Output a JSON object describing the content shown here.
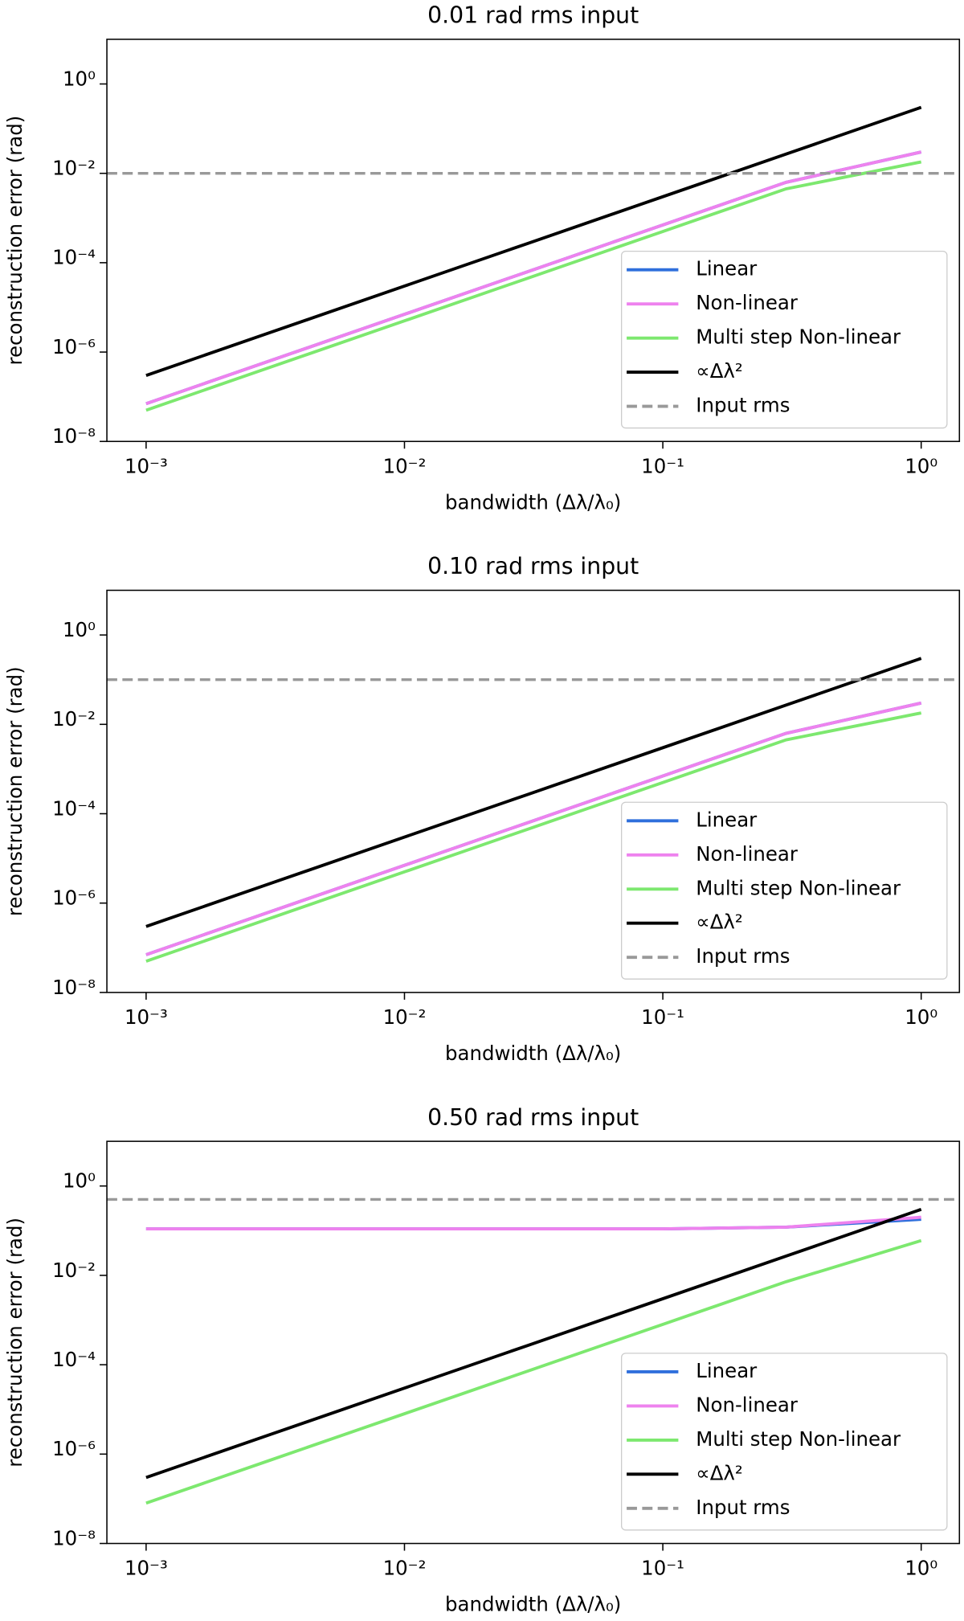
{
  "chart_data": [
    {
      "type": "line",
      "title": "0.01 rad rms input",
      "xlabel": "bandwidth (Δλ/λ₀)",
      "ylabel": "reconstruction error (rad)",
      "log_x": true,
      "log_y": true,
      "legend": "lower right",
      "x": [
        0.001,
        0.003,
        0.01,
        0.03,
        0.1,
        0.3,
        1
      ],
      "series": [
        {
          "name": "Linear",
          "color": "#2f6fdc",
          "values": [
            7e-08,
            6.3e-07,
            7e-06,
            6.3e-05,
            0.0007,
            0.0063,
            0.03
          ]
        },
        {
          "name": "Non-linear",
          "color": "#ee82ee",
          "values": [
            7e-08,
            6.3e-07,
            7e-06,
            6.3e-05,
            0.0007,
            0.0063,
            0.03
          ]
        },
        {
          "name": "Multi step Non-linear",
          "color": "#7de86f",
          "values": [
            5e-08,
            4.5e-07,
            5e-06,
            4.5e-05,
            0.0005,
            0.0045,
            0.018
          ]
        },
        {
          "name": "∝Δλ²",
          "color": "#000000",
          "values": [
            3e-07,
            2.7e-06,
            3e-05,
            0.00027,
            0.003,
            0.027,
            0.3
          ]
        }
      ],
      "hline": {
        "name": "Input rms",
        "color": "#999999",
        "value": 0.01
      },
      "xlim": [
        0.000705,
        1.406
      ],
      "ylim": [
        1e-08,
        10
      ],
      "xticks": [
        {
          "value": 0.001,
          "label": "10⁻³"
        },
        {
          "value": 0.01,
          "label": "10⁻²"
        },
        {
          "value": 0.1,
          "label": "10⁻¹"
        },
        {
          "value": 1,
          "label": "10⁰"
        }
      ],
      "yticks": [
        {
          "value": 1e-08,
          "label": "10⁻⁸"
        },
        {
          "value": 1e-06,
          "label": "10⁻⁶"
        },
        {
          "value": 0.0001,
          "label": "10⁻⁴"
        },
        {
          "value": 0.01,
          "label": "10⁻²"
        },
        {
          "value": 1,
          "label": "10⁰"
        }
      ]
    },
    {
      "type": "line",
      "title": "0.10 rad rms input",
      "xlabel": "bandwidth (Δλ/λ₀)",
      "ylabel": "reconstruction error (rad)",
      "log_x": true,
      "log_y": true,
      "legend": "lower right",
      "x": [
        0.001,
        0.003,
        0.01,
        0.03,
        0.1,
        0.3,
        1
      ],
      "series": [
        {
          "name": "Linear",
          "color": "#2f6fdc",
          "values": [
            7e-08,
            6.3e-07,
            7e-06,
            6.3e-05,
            0.0007,
            0.0063,
            0.03
          ]
        },
        {
          "name": "Non-linear",
          "color": "#ee82ee",
          "values": [
            7e-08,
            6.3e-07,
            7e-06,
            6.3e-05,
            0.0007,
            0.0063,
            0.03
          ]
        },
        {
          "name": "Multi step Non-linear",
          "color": "#7de86f",
          "values": [
            5e-08,
            4.5e-07,
            5e-06,
            4.5e-05,
            0.0005,
            0.0045,
            0.018
          ]
        },
        {
          "name": "∝Δλ²",
          "color": "#000000",
          "values": [
            3e-07,
            2.7e-06,
            3e-05,
            0.00027,
            0.003,
            0.027,
            0.3
          ]
        }
      ],
      "hline": {
        "name": "Input rms",
        "color": "#999999",
        "value": 0.1
      },
      "xlim": [
        0.000705,
        1.406
      ],
      "ylim": [
        1e-08,
        10
      ],
      "xticks": [
        {
          "value": 0.001,
          "label": "10⁻³"
        },
        {
          "value": 0.01,
          "label": "10⁻²"
        },
        {
          "value": 0.1,
          "label": "10⁻¹"
        },
        {
          "value": 1,
          "label": "10⁰"
        }
      ],
      "yticks": [
        {
          "value": 1e-08,
          "label": "10⁻⁸"
        },
        {
          "value": 1e-06,
          "label": "10⁻⁶"
        },
        {
          "value": 0.0001,
          "label": "10⁻⁴"
        },
        {
          "value": 0.01,
          "label": "10⁻²"
        },
        {
          "value": 1,
          "label": "10⁰"
        }
      ]
    },
    {
      "type": "line",
      "title": "0.50 rad rms input",
      "xlabel": "bandwidth (Δλ/λ₀)",
      "ylabel": "reconstruction error (rad)",
      "log_x": true,
      "log_y": true,
      "legend": "lower right",
      "x": [
        0.001,
        0.003,
        0.01,
        0.03,
        0.1,
        0.3,
        1
      ],
      "series": [
        {
          "name": "Linear",
          "color": "#2f6fdc",
          "values": [
            0.11,
            0.11,
            0.11,
            0.11,
            0.11,
            0.12,
            0.18
          ]
        },
        {
          "name": "Non-linear",
          "color": "#ee82ee",
          "values": [
            0.11,
            0.11,
            0.11,
            0.11,
            0.11,
            0.12,
            0.2
          ]
        },
        {
          "name": "Multi step Non-linear",
          "color": "#7de86f",
          "values": [
            8e-08,
            7.2e-07,
            8e-06,
            7.2e-05,
            0.0008,
            0.0072,
            0.06
          ]
        },
        {
          "name": "∝Δλ²",
          "color": "#000000",
          "values": [
            3e-07,
            2.7e-06,
            3e-05,
            0.00027,
            0.003,
            0.027,
            0.3
          ]
        }
      ],
      "hline": {
        "name": "Input rms",
        "color": "#999999",
        "value": 0.5
      },
      "xlim": [
        0.000705,
        1.406
      ],
      "ylim": [
        1e-08,
        10
      ],
      "xticks": [
        {
          "value": 0.001,
          "label": "10⁻³"
        },
        {
          "value": 0.01,
          "label": "10⁻²"
        },
        {
          "value": 0.1,
          "label": "10⁻¹"
        },
        {
          "value": 1,
          "label": "10⁰"
        }
      ],
      "yticks": [
        {
          "value": 1e-08,
          "label": "10⁻⁸"
        },
        {
          "value": 1e-06,
          "label": "10⁻⁶"
        },
        {
          "value": 0.0001,
          "label": "10⁻⁴"
        },
        {
          "value": 0.01,
          "label": "10⁻²"
        },
        {
          "value": 1,
          "label": "10⁰"
        }
      ]
    }
  ]
}
